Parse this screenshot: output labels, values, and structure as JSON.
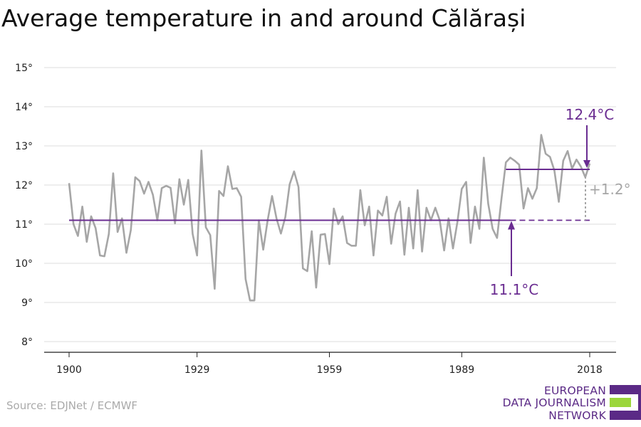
{
  "title": "Average temperature in and around Călărași",
  "source": "Source: EDJNet / ECMWF",
  "logo": {
    "lines": [
      "EUROPEAN",
      "DATA JOURNALISM",
      "NETWORK"
    ],
    "colors": [
      "#5b2a86",
      "#9bd63b",
      "#5b2a86"
    ]
  },
  "colors": {
    "series": "#a6a6a6",
    "accent": "#6a2c91",
    "grid": "#dddddd",
    "axis": "#222222"
  },
  "chart_data": {
    "type": "line",
    "xlim": [
      1900,
      2018
    ],
    "ylim": [
      8,
      15
    ],
    "x_ticks": [
      1900,
      1929,
      1959,
      1989,
      2018
    ],
    "y_ticks": [
      8,
      9,
      10,
      11,
      12,
      13,
      14,
      15
    ],
    "y_tick_labels": [
      "8°",
      "9°",
      "10°",
      "11°",
      "12°",
      "13°",
      "14°",
      "15°"
    ],
    "x_start": 1900,
    "values": [
      12.05,
      11.0,
      10.7,
      11.45,
      10.55,
      11.2,
      10.9,
      10.2,
      10.18,
      10.75,
      12.3,
      10.8,
      11.15,
      10.27,
      10.85,
      12.2,
      12.1,
      11.78,
      12.08,
      11.75,
      11.1,
      11.92,
      11.98,
      11.93,
      11.02,
      12.15,
      11.5,
      12.13,
      10.75,
      10.2,
      12.88,
      10.92,
      10.72,
      9.35,
      11.85,
      11.72,
      12.48,
      11.9,
      11.92,
      11.7,
      9.6,
      9.05,
      9.05,
      11.1,
      10.35,
      11.1,
      11.72,
      11.15,
      10.76,
      11.18,
      12.02,
      12.35,
      11.95,
      9.87,
      9.8,
      10.82,
      9.38,
      10.73,
      10.75,
      9.98,
      11.4,
      11.0,
      11.2,
      10.52,
      10.45,
      10.45,
      11.87,
      10.97,
      11.45,
      10.2,
      11.35,
      11.22,
      11.7,
      10.5,
      11.27,
      11.58,
      10.22,
      11.42,
      10.38,
      11.87,
      10.3,
      11.42,
      11.1,
      11.42,
      11.1,
      10.33,
      11.15,
      10.38,
      11.05,
      11.9,
      12.08,
      10.52,
      11.45,
      10.88,
      12.7,
      11.52,
      10.88,
      10.65,
      11.65,
      12.58,
      12.7,
      12.62,
      12.52,
      11.4,
      11.92,
      11.65,
      11.92,
      13.28,
      12.8,
      12.72,
      12.37,
      11.57,
      12.62,
      12.87,
      12.42,
      12.65,
      12.47,
      12.2,
      12.55
    ],
    "baseline": {
      "value": 11.1,
      "label": "11.1°C",
      "x_range": [
        1900,
        2000
      ]
    },
    "recent": {
      "value": 12.4,
      "label": "12.4°C",
      "x_range": [
        1999,
        2018
      ]
    },
    "difference_label": "+1.2°"
  }
}
